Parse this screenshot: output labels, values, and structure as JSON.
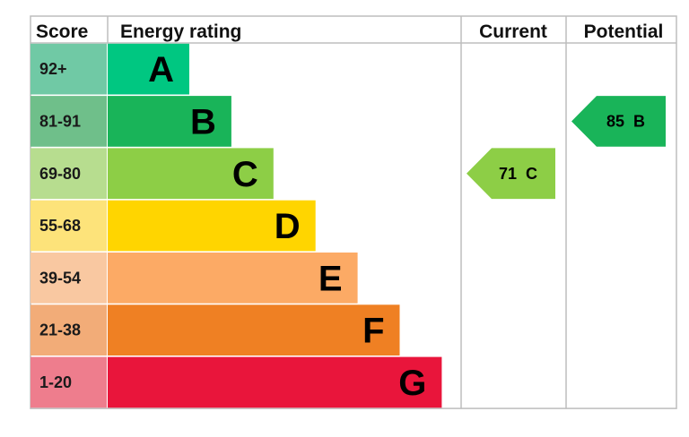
{
  "headers": {
    "score": "Score",
    "rating": "Energy rating",
    "current": "Current",
    "potential": "Potential"
  },
  "chart_data": {
    "type": "bar",
    "bands": [
      {
        "letter": "A",
        "score_range": "92+",
        "min": 92,
        "max": 100,
        "color": "#00c781",
        "score_bg": "#70c9a5"
      },
      {
        "letter": "B",
        "score_range": "81-91",
        "min": 81,
        "max": 91,
        "color": "#19b459",
        "score_bg": "#6fbf8a"
      },
      {
        "letter": "C",
        "score_range": "69-80",
        "min": 69,
        "max": 80,
        "color": "#8dce46",
        "score_bg": "#b7dd8f"
      },
      {
        "letter": "D",
        "score_range": "55-68",
        "min": 55,
        "max": 68,
        "color": "#ffd500",
        "score_bg": "#fde37a"
      },
      {
        "letter": "E",
        "score_range": "39-54",
        "min": 39,
        "max": 54,
        "color": "#fcaa65",
        "score_bg": "#f9c8a1"
      },
      {
        "letter": "F",
        "score_range": "21-38",
        "min": 21,
        "max": 38,
        "color": "#ef8023",
        "score_bg": "#f2ac78"
      },
      {
        "letter": "G",
        "score_range": "1-20",
        "min": 1,
        "max": 20,
        "color": "#e9153b",
        "score_bg": "#ee7d8d"
      }
    ],
    "current": {
      "value": 71,
      "band": "C",
      "label": "71  C",
      "color": "#8dce46"
    },
    "potential": {
      "value": 85,
      "band": "B",
      "label": "85  B",
      "color": "#19b459"
    }
  }
}
